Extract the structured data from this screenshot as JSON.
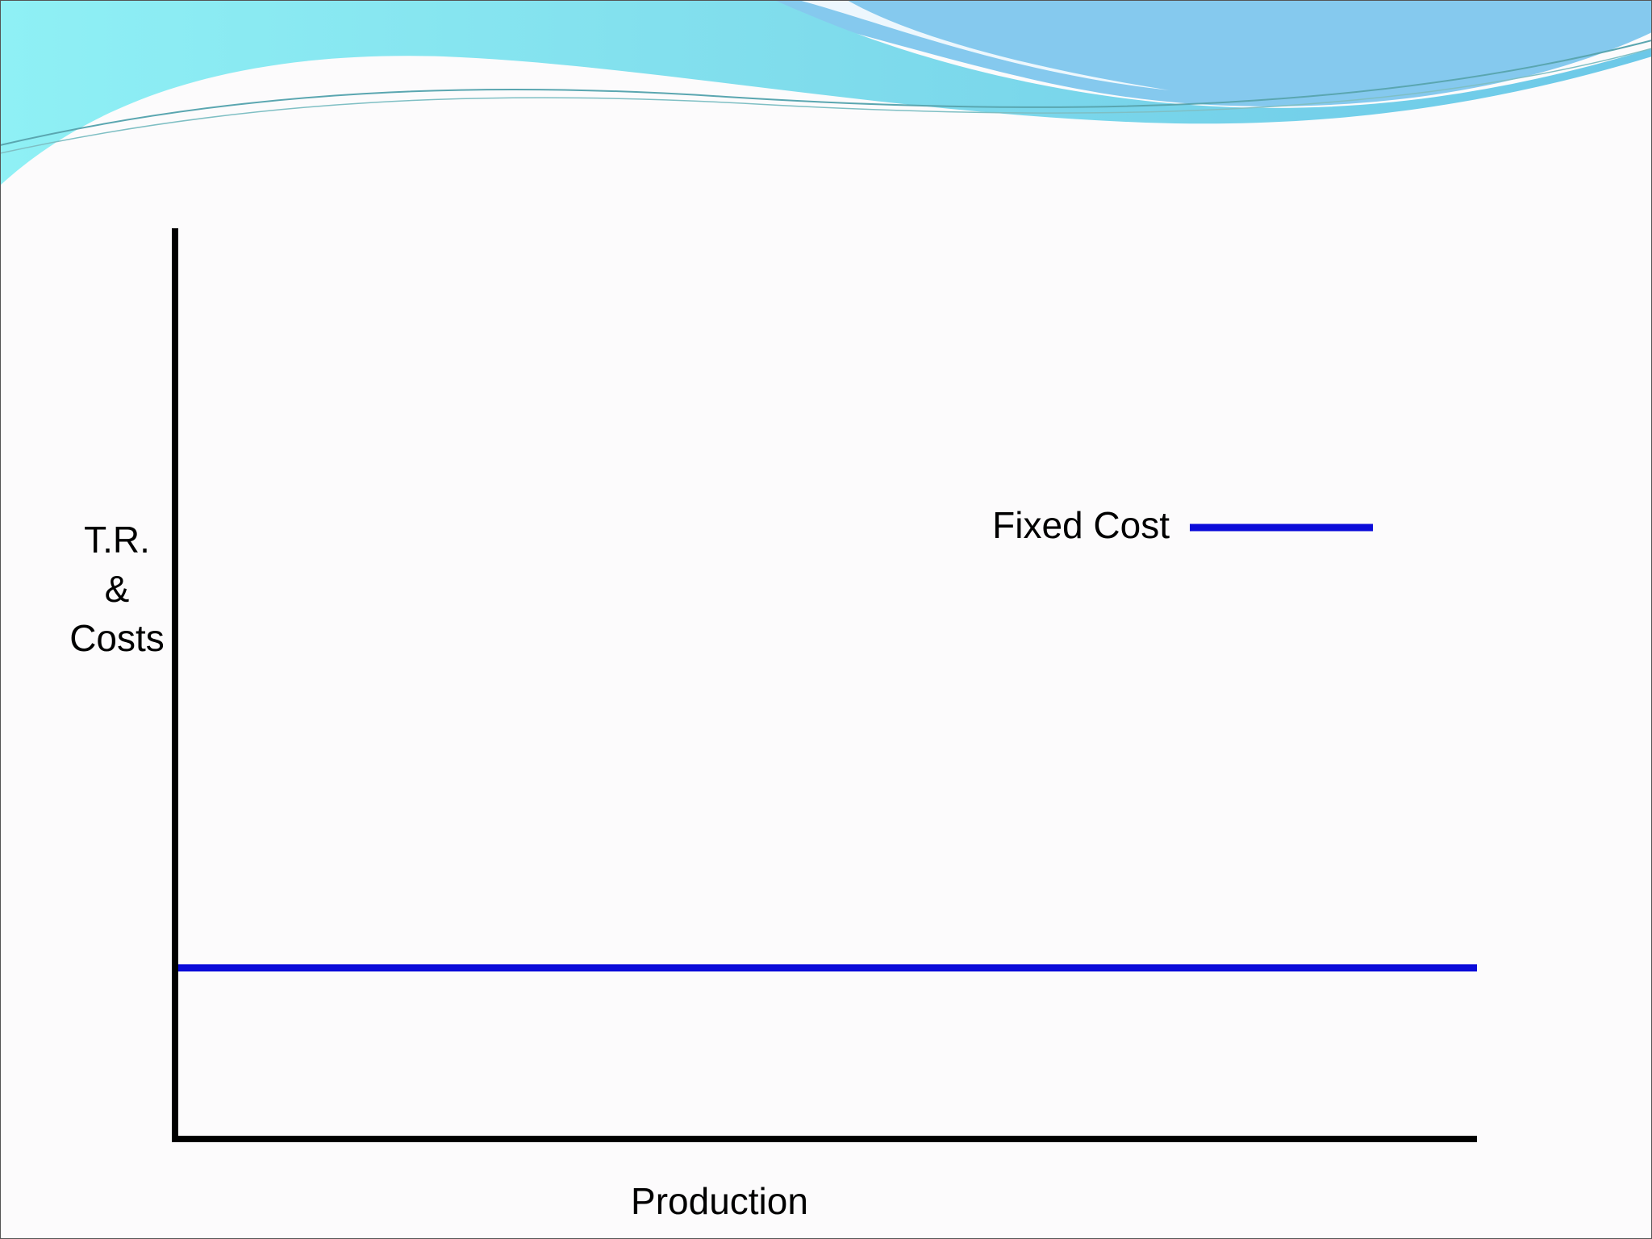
{
  "colors": {
    "axis": "#000000",
    "fixed_cost_line": "#0b0bd9",
    "wave_light": "#8eeaf2",
    "wave_mid": "#7fd3ea",
    "wave_dark": "#5bc3e0"
  },
  "chart_data": {
    "type": "line",
    "title": "",
    "xlabel": "Production",
    "ylabel_lines": [
      "T.R.",
      "&",
      "Costs"
    ],
    "xlim": [
      0,
      100
    ],
    "ylim": [
      0,
      100
    ],
    "grid": false,
    "legend_position": "top-right",
    "series": [
      {
        "name": "Fixed Cost",
        "color": "#0b0bd9",
        "x": [
          0,
          100
        ],
        "y": [
          18.5,
          18.5
        ]
      }
    ]
  }
}
